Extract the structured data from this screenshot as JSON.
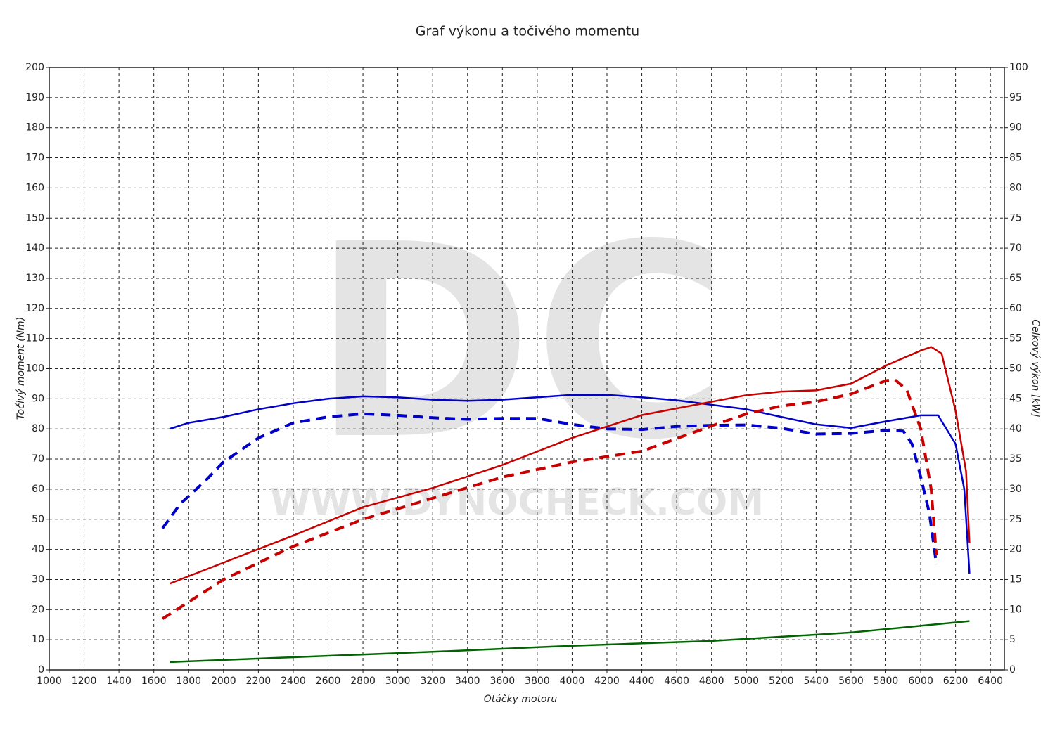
{
  "chart_data": {
    "type": "line",
    "title": "Graf výkonu a točivého momentu",
    "xlabel": "Otáčky motoru",
    "ylabel": "Točivý moment (Nm)",
    "y2label": "Celkový výkon [kW]",
    "watermark": "DC",
    "watermark_url": "WWW.DYNOCHECK.COM",
    "xlim": [
      1000,
      6480
    ],
    "ylim": [
      0,
      200
    ],
    "y2lim": [
      0,
      100
    ],
    "grid": true,
    "xticks": [
      1000,
      1200,
      1400,
      1600,
      1800,
      2000,
      2200,
      2400,
      2600,
      2800,
      3000,
      3200,
      3400,
      3600,
      3800,
      4000,
      4200,
      4400,
      4600,
      4800,
      5000,
      5200,
      5400,
      5600,
      5800,
      6000,
      6200,
      6400
    ],
    "yticks": [
      0,
      10,
      20,
      30,
      40,
      50,
      60,
      70,
      80,
      90,
      100,
      110,
      120,
      130,
      140,
      150,
      160,
      170,
      180,
      190,
      200
    ],
    "y2ticks": [
      0,
      5,
      10,
      15,
      20,
      25,
      30,
      35,
      40,
      45,
      50,
      55,
      60,
      65,
      70,
      75,
      80,
      85,
      90,
      95,
      100
    ],
    "series": [
      {
        "color": "#0000c8",
        "dashed": false,
        "axis": "y",
        "x": [
          1690,
          1800,
          2000,
          2200,
          2400,
          2600,
          2800,
          3000,
          3200,
          3400,
          3600,
          3800,
          4000,
          4200,
          4400,
          4600,
          4800,
          5000,
          5200,
          5400,
          5600,
          5800,
          6000,
          6100,
          6200,
          6250,
          6280
        ],
        "values": [
          80,
          82,
          84,
          86.5,
          88.5,
          90,
          90.8,
          90.5,
          89.7,
          89.3,
          89.7,
          90.5,
          91.3,
          91.3,
          90.5,
          89.5,
          88,
          86.5,
          84,
          81.5,
          80.3,
          82.5,
          84.5,
          84.5,
          75,
          60,
          32
        ]
      },
      {
        "color": "#0000c8",
        "dashed": true,
        "axis": "y",
        "x": [
          1650,
          1750,
          1900,
          2000,
          2200,
          2400,
          2600,
          2800,
          3000,
          3200,
          3400,
          3600,
          3800,
          4000,
          4200,
          4400,
          4600,
          4800,
          5000,
          5200,
          5400,
          5600,
          5800,
          5900,
          5950,
          6000,
          6050,
          6090
        ],
        "values": [
          47,
          55,
          63,
          69,
          77,
          82,
          84,
          85,
          84.5,
          83.7,
          83.2,
          83.5,
          83.5,
          81.5,
          80,
          79.8,
          80.8,
          81.2,
          81.3,
          80.2,
          78.3,
          78.5,
          79.5,
          79.3,
          75,
          64,
          52,
          35
        ]
      },
      {
        "color": "#c80000",
        "dashed": false,
        "axis": "y2",
        "x": [
          1690,
          2000,
          2400,
          2800,
          3200,
          3600,
          4000,
          4400,
          4800,
          5000,
          5200,
          5400,
          5600,
          5800,
          6000,
          6060,
          6120,
          6200,
          6260,
          6280
        ],
        "values": [
          14.3,
          17.8,
          22.3,
          27,
          30.2,
          34,
          38.5,
          42.3,
          44.5,
          45.6,
          46.2,
          46.4,
          47.5,
          50.5,
          53,
          53.6,
          52.5,
          43,
          33,
          21
        ]
      },
      {
        "color": "#c80000",
        "dashed": true,
        "axis": "y2",
        "x": [
          1650,
          2000,
          2400,
          2800,
          3200,
          3600,
          4000,
          4400,
          4800,
          5000,
          5200,
          5400,
          5600,
          5800,
          5850,
          5920,
          6000,
          6060,
          6090
        ],
        "values": [
          8.5,
          15,
          20.5,
          25,
          28.5,
          32,
          34.5,
          36.3,
          40.5,
          42.5,
          43.8,
          44.5,
          45.8,
          48,
          48.2,
          46.5,
          40,
          30,
          19
        ]
      },
      {
        "color": "#006400",
        "dashed": false,
        "axis": "y2",
        "x": [
          1690,
          2400,
          3200,
          4000,
          4800,
          5600,
          6280
        ],
        "values": [
          1.3,
          2.1,
          3,
          4,
          4.8,
          6.2,
          8.1
        ]
      }
    ]
  }
}
